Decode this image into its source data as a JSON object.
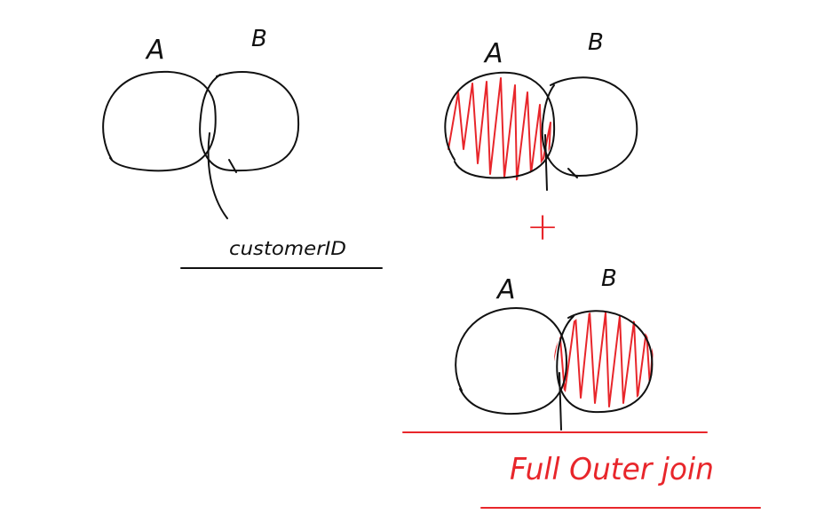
{
  "colors": {
    "ink": "#111111",
    "highlight": "#e8262b",
    "background": "#ffffff"
  },
  "diagram_1": {
    "label_a": "A",
    "label_b": "B",
    "annotation": "customerID",
    "shaded": "none"
  },
  "diagram_2": {
    "label_a": "A",
    "label_b": "B",
    "shaded": "A"
  },
  "plus_sign": "+",
  "diagram_3": {
    "label_a": "A",
    "label_b": "B",
    "shaded": "B"
  },
  "caption": "Full Outer join"
}
